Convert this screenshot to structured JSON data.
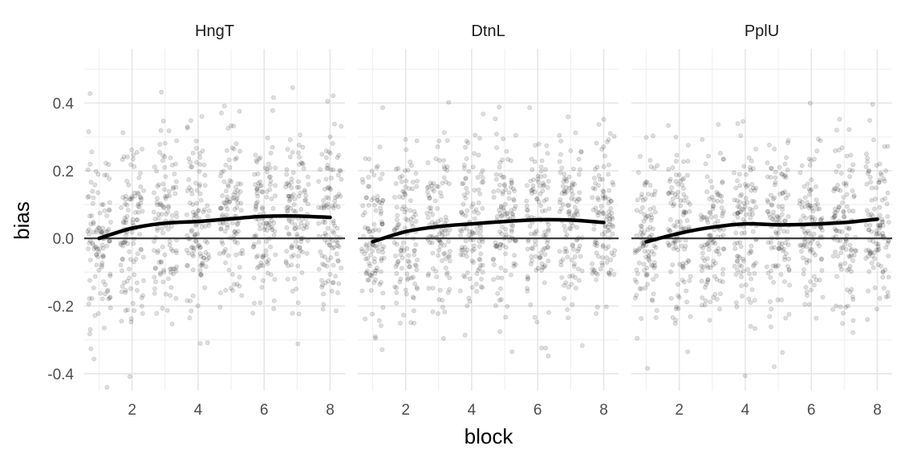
{
  "chart_data": {
    "type": "scatter",
    "xlabel": "block",
    "ylabel": "bias",
    "xlim": [
      0.55,
      8.45
    ],
    "ylim": [
      -0.45,
      0.56
    ],
    "x_ticks": [
      2,
      4,
      6,
      8
    ],
    "x_tick_labels": [
      "2",
      "4",
      "6",
      "8"
    ],
    "y_ticks": [
      -0.4,
      -0.2,
      0.0,
      0.2,
      0.4
    ],
    "y_tick_labels": [
      "-0.4",
      "-0.2",
      "0.0",
      "0.2",
      "0.4"
    ],
    "reference_line_y": 0.0,
    "grid": true,
    "point_style": {
      "color": "#000000",
      "opacity": 0.13,
      "jitter_width": 0.35
    },
    "panels": [
      {
        "name": "HngT",
        "points_per_block": 110,
        "block_distribution": [
          {
            "block": 1,
            "mean": 0.0,
            "sd": 0.13
          },
          {
            "block": 2,
            "mean": 0.03,
            "sd": 0.13
          },
          {
            "block": 3,
            "mean": 0.045,
            "sd": 0.13
          },
          {
            "block": 4,
            "mean": 0.05,
            "sd": 0.13
          },
          {
            "block": 5,
            "mean": 0.058,
            "sd": 0.13
          },
          {
            "block": 6,
            "mean": 0.065,
            "sd": 0.13
          },
          {
            "block": 7,
            "mean": 0.065,
            "sd": 0.13
          },
          {
            "block": 8,
            "mean": 0.062,
            "sd": 0.13
          }
        ],
        "smooth": {
          "x": [
            1,
            2,
            3,
            4,
            5,
            6,
            7,
            8
          ],
          "y": [
            0.0,
            0.03,
            0.045,
            0.05,
            0.058,
            0.065,
            0.066,
            0.062
          ]
        }
      },
      {
        "name": "DtnL",
        "points_per_block": 110,
        "block_distribution": [
          {
            "block": 1,
            "mean": -0.01,
            "sd": 0.13
          },
          {
            "block": 2,
            "mean": 0.02,
            "sd": 0.13
          },
          {
            "block": 3,
            "mean": 0.035,
            "sd": 0.13
          },
          {
            "block": 4,
            "mean": 0.043,
            "sd": 0.13
          },
          {
            "block": 5,
            "mean": 0.05,
            "sd": 0.13
          },
          {
            "block": 6,
            "mean": 0.055,
            "sd": 0.13
          },
          {
            "block": 7,
            "mean": 0.054,
            "sd": 0.13
          },
          {
            "block": 8,
            "mean": 0.047,
            "sd": 0.13
          }
        ],
        "smooth": {
          "x": [
            1,
            2,
            3,
            4,
            5,
            6,
            7,
            8
          ],
          "y": [
            -0.01,
            0.02,
            0.035,
            0.043,
            0.05,
            0.055,
            0.054,
            0.047
          ]
        }
      },
      {
        "name": "PplU",
        "points_per_block": 110,
        "block_distribution": [
          {
            "block": 1,
            "mean": -0.01,
            "sd": 0.13
          },
          {
            "block": 2,
            "mean": 0.015,
            "sd": 0.13
          },
          {
            "block": 3,
            "mean": 0.033,
            "sd": 0.13
          },
          {
            "block": 4,
            "mean": 0.043,
            "sd": 0.13
          },
          {
            "block": 5,
            "mean": 0.04,
            "sd": 0.13
          },
          {
            "block": 6,
            "mean": 0.042,
            "sd": 0.13
          },
          {
            "block": 7,
            "mean": 0.047,
            "sd": 0.13
          },
          {
            "block": 8,
            "mean": 0.057,
            "sd": 0.13
          }
        ],
        "smooth": {
          "x": [
            1,
            2,
            3,
            4,
            5,
            6,
            7,
            8
          ],
          "y": [
            -0.01,
            0.015,
            0.033,
            0.043,
            0.04,
            0.042,
            0.047,
            0.057
          ]
        }
      }
    ]
  }
}
